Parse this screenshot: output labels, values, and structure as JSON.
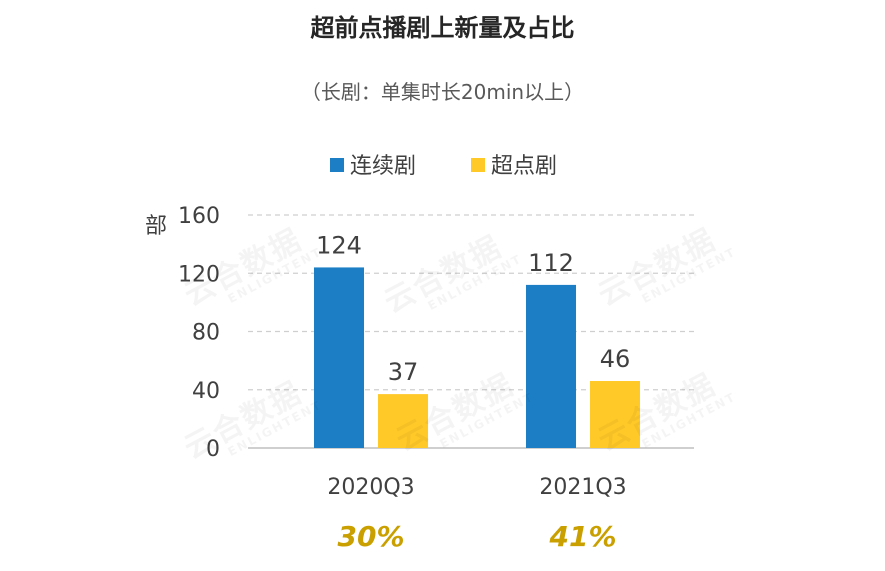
{
  "chart_data": {
    "type": "bar",
    "title": "超前点播剧上新量及占比",
    "subtitle": "（长剧：单集时长20min以上）",
    "ylabel": "部",
    "xlabel": "",
    "ylim": [
      0,
      160
    ],
    "yticks": [
      0,
      40,
      80,
      120,
      160
    ],
    "ytick_labels": [
      "0",
      "40",
      "80",
      "120",
      "160"
    ],
    "grid": true,
    "legend_position": "top",
    "categories": [
      "2020Q3",
      "2021Q3"
    ],
    "series": [
      {
        "name": "连续剧",
        "color": "#1c7fc5",
        "values": [
          124,
          112
        ]
      },
      {
        "name": "超点剧",
        "color": "#ffc928",
        "values": [
          37,
          46
        ]
      }
    ],
    "annotations": [
      "30%",
      "41%"
    ],
    "annotation_color": "#c9a000"
  },
  "watermark": {
    "main": "云合数据",
    "sub": "ENLIGHTENT"
  }
}
